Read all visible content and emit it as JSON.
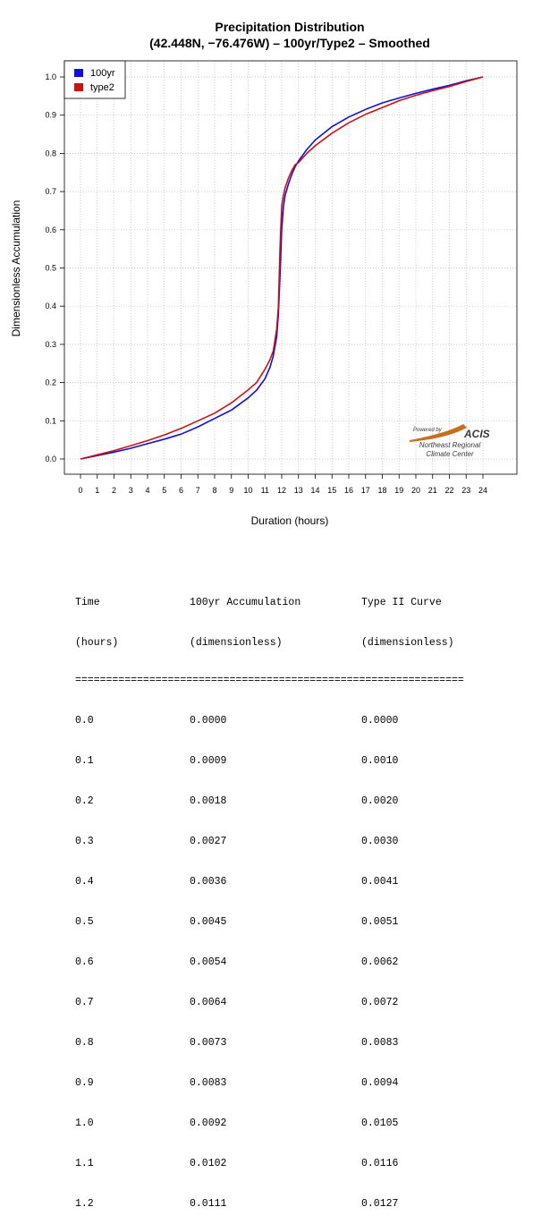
{
  "chart_data": {
    "type": "line",
    "title": "Precipitation Distribution",
    "subtitle": "(42.448N, −76.476W) – 100yr/Type2 – Smoothed",
    "xlabel": "Duration (hours)",
    "ylabel": "Dimensionless Accumulation",
    "xlim": [
      0,
      24
    ],
    "ylim": [
      0,
      1
    ],
    "x_ticks": [
      "0",
      "1",
      "2",
      "3",
      "4",
      "5",
      "6",
      "7",
      "8",
      "9",
      "10",
      "11",
      "12",
      "13",
      "14",
      "15",
      "16",
      "17",
      "18",
      "19",
      "20",
      "21",
      "22",
      "23",
      "24"
    ],
    "y_ticks": [
      "0.0",
      "0.1",
      "0.2",
      "0.3",
      "0.4",
      "0.5",
      "0.6",
      "0.7",
      "0.8",
      "0.9",
      "1.0"
    ],
    "grid": true,
    "legend_position": "top-left",
    "series": [
      {
        "name": "100yr",
        "color": "#1010dd",
        "x": [
          0,
          1,
          2,
          3,
          4,
          5,
          6,
          7,
          8,
          9,
          10,
          10.5,
          11,
          11.3,
          11.5,
          11.7,
          11.8,
          11.9,
          12,
          12.1,
          12.2,
          12.4,
          12.6,
          12.8,
          13,
          13.5,
          14,
          15,
          16,
          17,
          18,
          19,
          20,
          21,
          22,
          23,
          24
        ],
        "y": [
          0,
          0.009,
          0.018,
          0.028,
          0.04,
          0.052,
          0.065,
          0.084,
          0.106,
          0.128,
          0.16,
          0.18,
          0.21,
          0.24,
          0.27,
          0.32,
          0.38,
          0.48,
          0.6,
          0.66,
          0.69,
          0.72,
          0.745,
          0.765,
          0.78,
          0.81,
          0.835,
          0.87,
          0.895,
          0.915,
          0.932,
          0.945,
          0.957,
          0.968,
          0.978,
          0.99,
          1.0
        ]
      },
      {
        "name": "type2",
        "color": "#cc1111",
        "x": [
          0,
          1,
          2,
          3,
          4,
          5,
          6,
          7,
          8,
          9,
          10,
          10.5,
          11,
          11.3,
          11.5,
          11.7,
          11.8,
          11.9,
          12,
          12.1,
          12.2,
          12.4,
          12.6,
          12.8,
          13,
          13.5,
          14,
          15,
          16,
          17,
          18,
          19,
          20,
          21,
          22,
          23,
          24
        ],
        "y": [
          0,
          0.011,
          0.022,
          0.035,
          0.048,
          0.063,
          0.08,
          0.1,
          0.12,
          0.147,
          0.181,
          0.2,
          0.235,
          0.26,
          0.283,
          0.34,
          0.4,
          0.55,
          0.663,
          0.69,
          0.71,
          0.735,
          0.755,
          0.77,
          0.776,
          0.8,
          0.82,
          0.853,
          0.88,
          0.902,
          0.92,
          0.938,
          0.952,
          0.964,
          0.975,
          0.988,
          1.0
        ]
      }
    ]
  },
  "logo": {
    "powered_by": "Powered by",
    "brand": "ACIS",
    "line1": "Northeast Regional",
    "line2": "Climate Center"
  },
  "table": {
    "headers": [
      [
        "Time",
        "100yr Accumulation",
        "Type II Curve"
      ],
      [
        "(hours)",
        "(dimensionless)",
        "(dimensionless)"
      ]
    ],
    "separator": "===============================================================",
    "rows": [
      [
        "0.0",
        "0.0000",
        "0.0000"
      ],
      [
        "0.1",
        "0.0009",
        "0.0010"
      ],
      [
        "0.2",
        "0.0018",
        "0.0020"
      ],
      [
        "0.3",
        "0.0027",
        "0.0030"
      ],
      [
        "0.4",
        "0.0036",
        "0.0041"
      ],
      [
        "0.5",
        "0.0045",
        "0.0051"
      ],
      [
        "0.6",
        "0.0054",
        "0.0062"
      ],
      [
        "0.7",
        "0.0064",
        "0.0072"
      ],
      [
        "0.8",
        "0.0073",
        "0.0083"
      ],
      [
        "0.9",
        "0.0083",
        "0.0094"
      ],
      [
        "1.0",
        "0.0092",
        "0.0105"
      ],
      [
        "1.1",
        "0.0102",
        "0.0116"
      ],
      [
        "1.2",
        "0.0111",
        "0.0127"
      ]
    ]
  }
}
